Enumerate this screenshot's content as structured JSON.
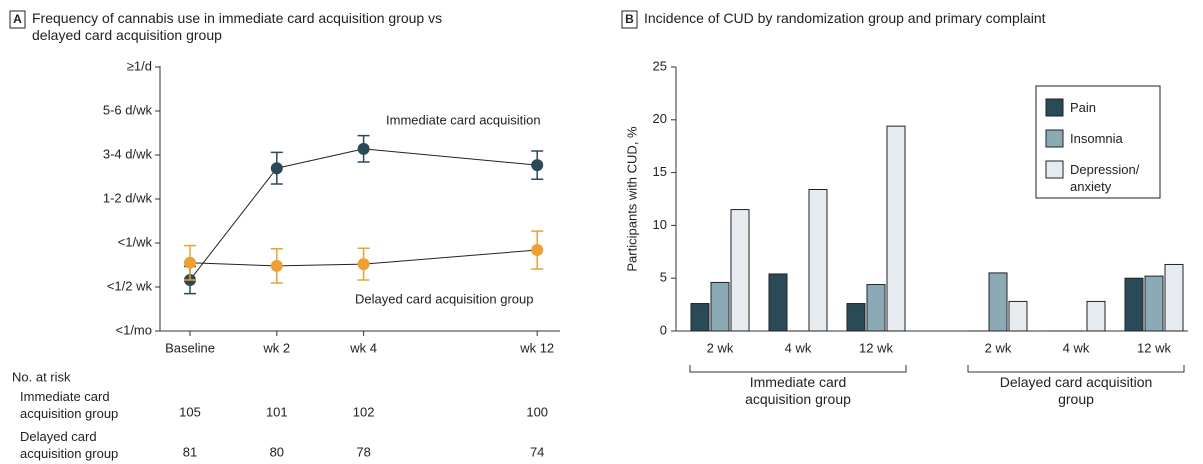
{
  "chart_data": [
    {
      "type": "line",
      "panel": "A",
      "title": "Frequency of cannabis use in immediate card acquisition group vs delayed card acquisition group",
      "categories": [
        "Baseline",
        "wk 2",
        "wk 4",
        "wk 12"
      ],
      "ylim": [
        0,
        6
      ],
      "yticks": [
        {
          "value": 0,
          "label": "<1/mo"
        },
        {
          "value": 1,
          "label": "<1/2 wk"
        },
        {
          "value": 2,
          "label": "<1/wk"
        },
        {
          "value": 3,
          "label": "1-2 d/wk"
        },
        {
          "value": 4,
          "label": "3-4 d/wk"
        },
        {
          "value": 5,
          "label": "5-6 d/wk"
        },
        {
          "value": 6,
          "label": "≥1/d"
        }
      ],
      "series": [
        {
          "name": "Immediate card acquisition",
          "color": "#2b4a57",
          "values": [
            1.16,
            3.7,
            4.14,
            3.77
          ],
          "error": [
            0.31,
            0.36,
            0.3,
            0.32
          ]
        },
        {
          "name": "Delayed card acquisition group",
          "color": "#f0a030",
          "values": [
            1.55,
            1.48,
            1.52,
            1.84
          ],
          "error": [
            0.39,
            0.39,
            0.36,
            0.43
          ]
        }
      ],
      "at_risk": {
        "title": "No. at risk",
        "rows": [
          {
            "name": "Immediate card acquisition group",
            "values": [
              105,
              101,
              102,
              100
            ]
          },
          {
            "name": "Delayed card acquisition group",
            "values": [
              81,
              80,
              78,
              74
            ]
          }
        ]
      }
    },
    {
      "type": "bar",
      "panel": "B",
      "title": "Incidence of CUD by randomization group and primary complaint",
      "ylabel": "Participants with CUD, %",
      "categories": [
        "2 wk",
        "4 wk",
        "12 wk",
        "2 wk",
        "4 wk",
        "12 wk"
      ],
      "groups": [
        "Immediate card acquisition group",
        "Delayed card acquisition group"
      ],
      "ylim": [
        0,
        25
      ],
      "yticks": [
        0,
        5,
        10,
        15,
        20,
        25
      ],
      "legend": "upper right",
      "series": [
        {
          "name": "Pain",
          "color": "#2b4a57",
          "values": [
            2.6,
            5.4,
            2.6,
            0,
            0,
            5.0
          ]
        },
        {
          "name": "Insomnia",
          "color": "#8aaab5",
          "values": [
            4.6,
            0,
            4.4,
            5.5,
            0,
            5.2
          ]
        },
        {
          "name": "Depression/ anxiety",
          "color": "#e6ecef",
          "values": [
            11.5,
            13.4,
            19.4,
            2.8,
            2.8,
            6.3
          ]
        }
      ]
    }
  ]
}
